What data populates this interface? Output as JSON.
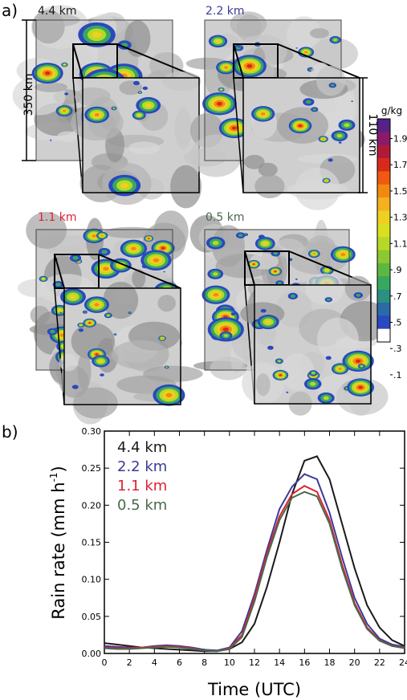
{
  "panel_a": {
    "label": "a)",
    "scale_label": "350 km",
    "inset_scale_label": "110 km",
    "resolutions": [
      {
        "label": "4.4 km",
        "color": "#1a1a1a"
      },
      {
        "label": "2.2 km",
        "color": "#3a3a9a"
      },
      {
        "label": "1.1 km",
        "color": "#dd2233"
      },
      {
        "label": "0.5 km",
        "color": "#4a6a4a"
      }
    ],
    "colorbar": {
      "unit": "g/kg",
      "ticks": [
        "1.9",
        "1.7",
        "1.5",
        "1.3",
        "1.1",
        ".9",
        ".7",
        ".5",
        ".3",
        ".1"
      ],
      "colors": [
        "#552288",
        "#8a1a6a",
        "#b01a3a",
        "#d82a1a",
        "#ee5a10",
        "#f28a10",
        "#f5b020",
        "#eed020",
        "#d8e020",
        "#b8d828",
        "#8cc830",
        "#5cb840",
        "#38a860",
        "#2a9080",
        "#2a6aa8",
        "#2a48c0",
        "#ffffff"
      ]
    }
  },
  "panel_b": {
    "label": "b)"
  },
  "chart_data": {
    "type": "line",
    "xlabel": "Time (UTC)",
    "ylabel": "Rain rate (mm h",
    "ylabel_sup": "-1",
    "ylabel_close": ")",
    "xlim": [
      0,
      24
    ],
    "ylim": [
      0,
      0.3
    ],
    "xticks": [
      0,
      2,
      4,
      6,
      8,
      10,
      12,
      14,
      16,
      18,
      20,
      22,
      24
    ],
    "yticks": [
      0.0,
      0.05,
      0.1,
      0.15,
      0.2,
      0.25,
      0.3
    ],
    "ytick_labels": [
      "0.00",
      "0.05",
      "0.10",
      "0.15",
      "0.20",
      "0.25",
      "0.30"
    ],
    "x": [
      0,
      1,
      2,
      3,
      4,
      5,
      6,
      7,
      8,
      9,
      10,
      11,
      12,
      13,
      14,
      15,
      16,
      17,
      18,
      19,
      20,
      21,
      22,
      23,
      24
    ],
    "series": [
      {
        "name": "4.4 km",
        "color": "#1a1a1a",
        "values": [
          0.014,
          0.012,
          0.01,
          0.008,
          0.007,
          0.006,
          0.005,
          0.004,
          0.003,
          0.003,
          0.006,
          0.015,
          0.04,
          0.09,
          0.15,
          0.215,
          0.26,
          0.266,
          0.235,
          0.175,
          0.115,
          0.065,
          0.035,
          0.018,
          0.01
        ]
      },
      {
        "name": "2.2 km",
        "color": "#3a3a9a",
        "values": [
          0.01,
          0.009,
          0.008,
          0.008,
          0.01,
          0.011,
          0.01,
          0.008,
          0.005,
          0.004,
          0.008,
          0.03,
          0.08,
          0.14,
          0.195,
          0.225,
          0.242,
          0.235,
          0.19,
          0.13,
          0.075,
          0.04,
          0.02,
          0.012,
          0.009
        ]
      },
      {
        "name": "1.1 km",
        "color": "#dd2233",
        "values": [
          0.008,
          0.007,
          0.007,
          0.008,
          0.009,
          0.01,
          0.009,
          0.007,
          0.004,
          0.003,
          0.007,
          0.025,
          0.075,
          0.135,
          0.185,
          0.215,
          0.226,
          0.218,
          0.18,
          0.12,
          0.068,
          0.035,
          0.018,
          0.01,
          0.008
        ]
      },
      {
        "name": "0.5 km",
        "color": "#4a6a4a",
        "values": [
          0.007,
          0.006,
          0.006,
          0.007,
          0.008,
          0.009,
          0.008,
          0.006,
          0.004,
          0.003,
          0.006,
          0.022,
          0.07,
          0.13,
          0.18,
          0.21,
          0.218,
          0.212,
          0.175,
          0.115,
          0.065,
          0.033,
          0.017,
          0.01,
          0.007
        ]
      }
    ],
    "legend_placement": "upper-left",
    "grid": false
  }
}
